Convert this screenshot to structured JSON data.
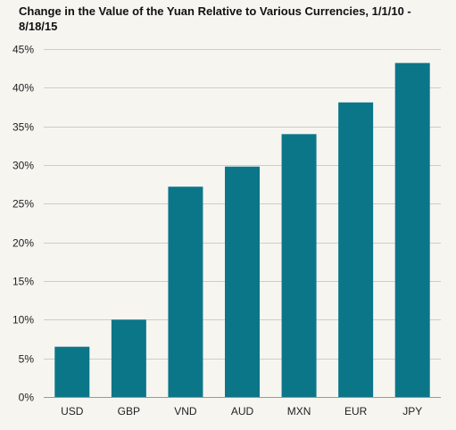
{
  "colors": {
    "bar": "#0c7689",
    "grid": "#cfcdc8",
    "axis": "#999999",
    "background": "#f7f5f0"
  },
  "chart_data": {
    "type": "bar",
    "title": "Change in the Value of the Yuan Relative to Various Currencies, 1/1/10 - 8/18/15",
    "xlabel": "",
    "ylabel": "",
    "categories": [
      "USD",
      "GBP",
      "VND",
      "AUD",
      "MXN",
      "EUR",
      "JPY"
    ],
    "values": [
      6.5,
      10.0,
      27.2,
      29.8,
      34.0,
      38.1,
      43.2
    ],
    "ylim": [
      0,
      45
    ],
    "yticks": [
      0,
      5,
      10,
      15,
      20,
      25,
      30,
      35,
      40,
      45
    ],
    "ytick_labels": [
      "0%",
      "5%",
      "10%",
      "15%",
      "20%",
      "25%",
      "30%",
      "35%",
      "40%",
      "45%"
    ],
    "grid": true,
    "legend": "none"
  }
}
